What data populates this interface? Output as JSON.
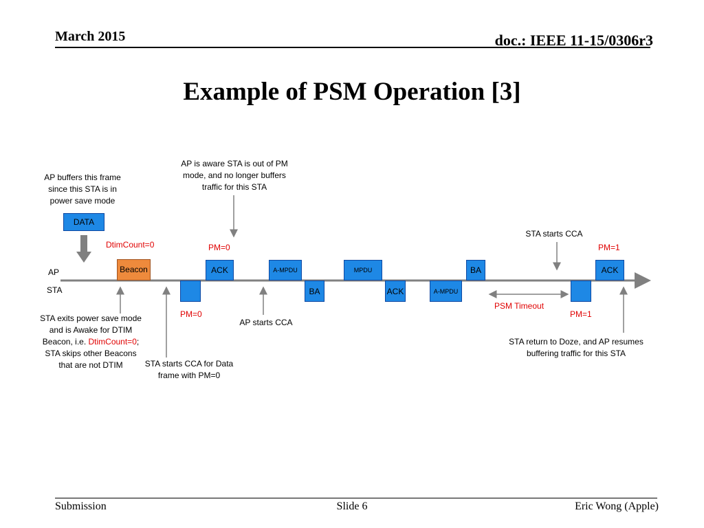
{
  "header": {
    "date": "March 2015",
    "doc": "doc.: IEEE 11-15/0306r3"
  },
  "title": "Example of PSM Operation [3]",
  "footer": {
    "left": "Submission",
    "center": "Slide 6",
    "right": "Eric Wong (Apple)"
  },
  "lanes": {
    "ap": "AP",
    "sta": "STA"
  },
  "notes": {
    "ap_buffers": [
      "AP buffers this frame",
      "since this STA is in",
      "power save mode"
    ],
    "ap_aware": [
      "AP is aware STA is out of PM",
      "mode, and no longer buffers",
      "traffic for this STA"
    ],
    "sta_starts_cca_right": "STA starts CCA",
    "sta_exits": {
      "line1": "STA exits power save mode",
      "line2": "and is Awake for DTIM",
      "line3_pre": "Beacon, i.e. ",
      "line3_red": "DtimCount=0",
      "line3_post": ";",
      "line4": "STA skips other Beacons",
      "line5": "that are not DTIM"
    },
    "sta_cca_data": [
      "STA starts CCA for Data",
      "frame with PM=0"
    ],
    "ap_starts_cca": "AP starts CCA",
    "sta_return": [
      "STA return to Doze, and AP resumes",
      "buffering traffic for this STA"
    ]
  },
  "red_labels": {
    "dtim": "DtimCount=0",
    "pm0_top": "PM=0",
    "pm1_top": "PM=1",
    "pm0_bottom": "PM=0",
    "psm_timeout": "PSM Timeout",
    "pm1_bottom": "PM=1"
  },
  "frames": {
    "data": "DATA",
    "beacon": "Beacon",
    "ack1": "ACK",
    "ampdu1": "A-MPDU",
    "mpdu": "MPDU",
    "ba2": "BA",
    "ack_end": "ACK",
    "ba1": "BA",
    "ack2": "ACK",
    "ampdu2": "A-MPDU"
  },
  "colors": {
    "frame_blue": "#1e88e5",
    "beacon_orange": "#ee8a3c",
    "red_text": "#e00000",
    "arrow_gray": "#808080"
  }
}
